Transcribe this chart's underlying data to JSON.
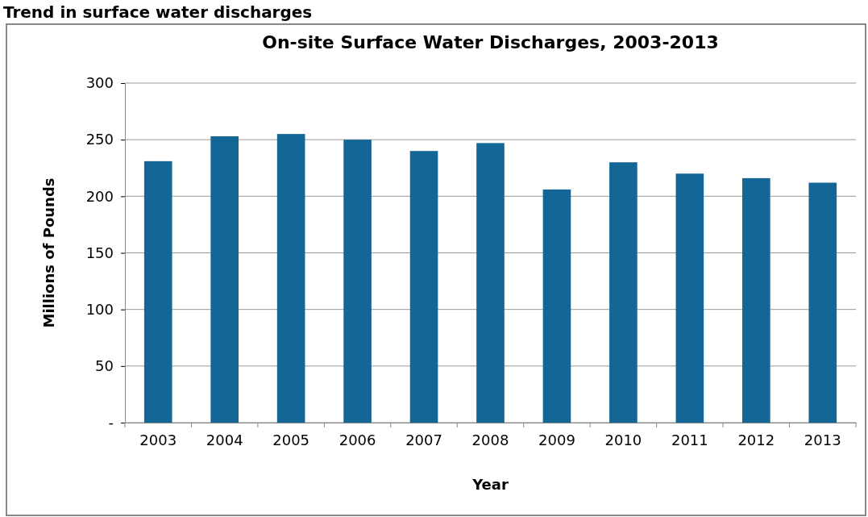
{
  "chart_data": {
    "type": "bar",
    "title": "On-site Surface Water Discharges, 2003-2013",
    "xlabel": "Year",
    "ylabel": "Millions of Pounds",
    "annotations": [
      "Trend in surface water discharges"
    ],
    "categories": [
      "2003",
      "2004",
      "2005",
      "2006",
      "2007",
      "2008",
      "2009",
      "2010",
      "2011",
      "2012",
      "2013"
    ],
    "values": [
      231,
      253,
      255,
      250,
      240,
      247,
      206,
      230,
      220,
      216,
      212
    ],
    "color": "#146696",
    "ylim": [
      0,
      300
    ],
    "yticks": [
      {
        "value": 0,
        "label": "-"
      },
      50,
      100,
      150,
      200,
      250,
      300
    ],
    "grid": "y"
  }
}
